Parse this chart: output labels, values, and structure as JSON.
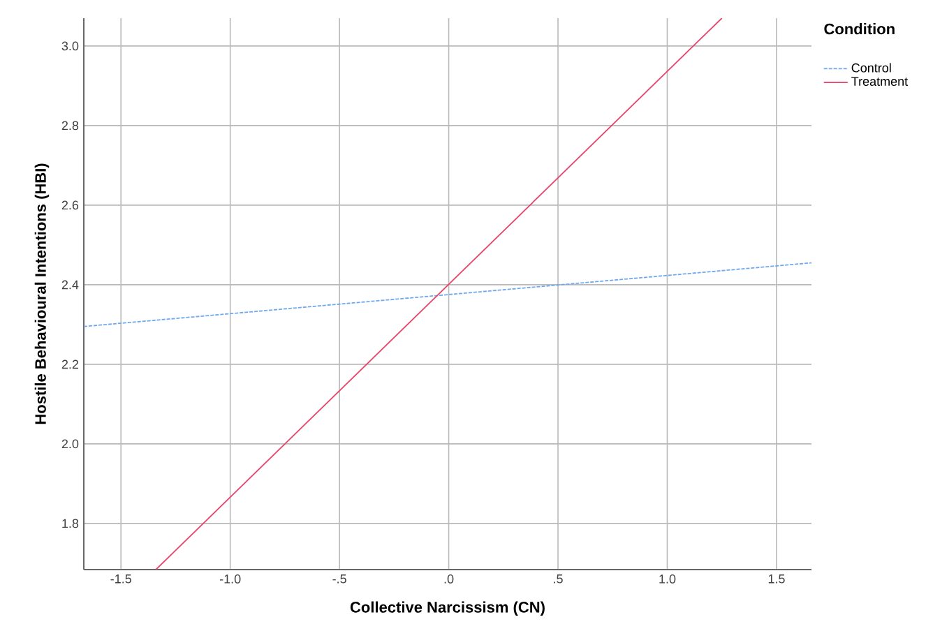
{
  "chart_data": {
    "type": "line",
    "xlabel": "Collective Narcissism (CN)",
    "ylabel": "Hostile Behavioural Intentions (HBI)",
    "legend_title": "Condition",
    "xlim": [
      -1.67,
      1.66
    ],
    "ylim": [
      1.684,
      3.07
    ],
    "xticks": [
      {
        "value": -1.5,
        "label": "-1.5"
      },
      {
        "value": -1.0,
        "label": "-1.0"
      },
      {
        "value": -0.5,
        "label": "-.5"
      },
      {
        "value": 0,
        "label": ".0"
      },
      {
        "value": 0.5,
        "label": ".5"
      },
      {
        "value": 1.0,
        "label": "1.0"
      },
      {
        "value": 1.5,
        "label": "1.5"
      }
    ],
    "yticks": [
      {
        "value": 1.8,
        "label": "1.8"
      },
      {
        "value": 2.0,
        "label": "2.0"
      },
      {
        "value": 2.2,
        "label": "2.2"
      },
      {
        "value": 2.4,
        "label": "2.4"
      },
      {
        "value": 2.6,
        "label": "2.6"
      },
      {
        "value": 2.8,
        "label": "2.8"
      },
      {
        "value": 3.0,
        "label": "3.0"
      }
    ],
    "grid": true,
    "legend": "top right",
    "series": [
      {
        "name": "Control",
        "color": "#6fa8f0",
        "line_style": "dashed",
        "x": [
          -1.67,
          1.66
        ],
        "values": [
          2.295,
          2.455
        ]
      },
      {
        "name": "Treatment",
        "color": "#e8436a",
        "line_style": "solid",
        "x": [
          -1.34,
          1.25
        ],
        "values": [
          1.684,
          3.07
        ]
      }
    ]
  }
}
